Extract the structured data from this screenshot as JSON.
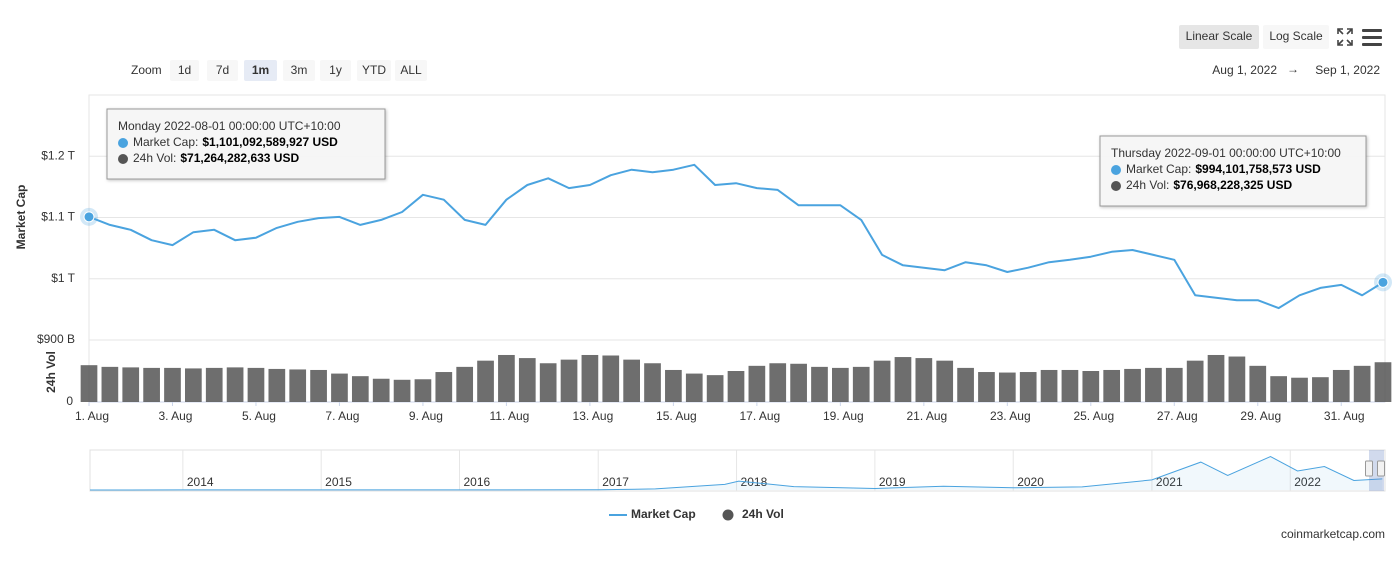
{
  "controls": {
    "zoom_label": "Zoom",
    "zoom_buttons": [
      "1d",
      "7d",
      "1m",
      "3m",
      "1y",
      "YTD",
      "ALL"
    ],
    "selected_zoom": 2,
    "scale_buttons": [
      "Linear Scale",
      "Log Scale"
    ],
    "selected_scale": 0
  },
  "date_range": {
    "from": "Aug 1, 2022",
    "arrow": "→",
    "to": "Sep 1, 2022"
  },
  "chart_data": {
    "type": "line",
    "ylabel": "Market Cap",
    "y2label": "24h Vol",
    "x": [
      "2022-08-01 00:00",
      "2022-08-01 12:00",
      "2022-08-02 00:00",
      "2022-08-02 12:00",
      "2022-08-03 00:00",
      "2022-08-03 12:00",
      "2022-08-04 00:00",
      "2022-08-04 12:00",
      "2022-08-05 00:00",
      "2022-08-05 12:00",
      "2022-08-06 00:00",
      "2022-08-06 12:00",
      "2022-08-07 00:00",
      "2022-08-07 12:00",
      "2022-08-08 00:00",
      "2022-08-08 12:00",
      "2022-08-09 00:00",
      "2022-08-09 12:00",
      "2022-08-10 00:00",
      "2022-08-10 12:00",
      "2022-08-11 00:00",
      "2022-08-11 12:00",
      "2022-08-12 00:00",
      "2022-08-12 12:00",
      "2022-08-13 00:00",
      "2022-08-13 12:00",
      "2022-08-14 00:00",
      "2022-08-14 12:00",
      "2022-08-15 00:00",
      "2022-08-15 12:00",
      "2022-08-16 00:00",
      "2022-08-16 12:00",
      "2022-08-17 00:00",
      "2022-08-17 12:00",
      "2022-08-18 00:00",
      "2022-08-18 12:00",
      "2022-08-19 00:00",
      "2022-08-19 12:00",
      "2022-08-20 00:00",
      "2022-08-20 12:00",
      "2022-08-21 00:00",
      "2022-08-21 12:00",
      "2022-08-22 00:00",
      "2022-08-22 12:00",
      "2022-08-23 00:00",
      "2022-08-23 12:00",
      "2022-08-24 00:00",
      "2022-08-24 12:00",
      "2022-08-25 00:00",
      "2022-08-25 12:00",
      "2022-08-26 00:00",
      "2022-08-26 12:00",
      "2022-08-27 00:00",
      "2022-08-27 12:00",
      "2022-08-28 00:00",
      "2022-08-28 12:00",
      "2022-08-29 00:00",
      "2022-08-29 12:00",
      "2022-08-30 00:00",
      "2022-08-30 12:00",
      "2022-08-31 00:00",
      "2022-08-31 12:00",
      "2022-09-01 00:00"
    ],
    "xlim": [
      "2022-08-01 00:00",
      "2022-09-01 00:00"
    ],
    "xticks": [
      {
        "value": "2022-08-01 00:00",
        "label": "1. Aug"
      },
      {
        "value": "2022-08-03 00:00",
        "label": "3. Aug"
      },
      {
        "value": "2022-08-05 00:00",
        "label": "5. Aug"
      },
      {
        "value": "2022-08-07 00:00",
        "label": "7. Aug"
      },
      {
        "value": "2022-08-09 00:00",
        "label": "9. Aug"
      },
      {
        "value": "2022-08-11 00:00",
        "label": "11. Aug"
      },
      {
        "value": "2022-08-13 00:00",
        "label": "13. Aug"
      },
      {
        "value": "2022-08-15 00:00",
        "label": "15. Aug"
      },
      {
        "value": "2022-08-17 00:00",
        "label": "17. Aug"
      },
      {
        "value": "2022-08-19 00:00",
        "label": "19. Aug"
      },
      {
        "value": "2022-08-21 00:00",
        "label": "21. Aug"
      },
      {
        "value": "2022-08-23 00:00",
        "label": "23. Aug"
      },
      {
        "value": "2022-08-25 00:00",
        "label": "25. Aug"
      },
      {
        "value": "2022-08-27 00:00",
        "label": "27. Aug"
      },
      {
        "value": "2022-08-29 00:00",
        "label": "29. Aug"
      },
      {
        "value": "2022-08-31 00:00",
        "label": "31. Aug"
      }
    ],
    "ylim": [
      900000000000,
      1300000000000
    ],
    "yticks": [
      {
        "value": 900000000000,
        "label": "$900 B"
      },
      {
        "value": 1000000000000,
        "label": "$1 T"
      },
      {
        "value": 1100000000000,
        "label": "$1.1 T"
      },
      {
        "value": 1200000000000,
        "label": "$1.2 T"
      }
    ],
    "y2lim": [
      0,
      120000000000
    ],
    "y2ticks": [
      0
    ],
    "grid": true,
    "series": [
      {
        "name": "Market Cap",
        "color": "#4aa3df",
        "values": [
          1101092589927,
          1088000000000,
          1080000000000,
          1063000000000,
          1055000000000,
          1076000000000,
          1080000000000,
          1063000000000,
          1067000000000,
          1083000000000,
          1093000000000,
          1099000000000,
          1101000000000,
          1088000000000,
          1096000000000,
          1109000000000,
          1137000000000,
          1129000000000,
          1096000000000,
          1088000000000,
          1129000000000,
          1153000000000,
          1164000000000,
          1148000000000,
          1153000000000,
          1169000000000,
          1178000000000,
          1174000000000,
          1178000000000,
          1186000000000,
          1153000000000,
          1156000000000,
          1148000000000,
          1145000000000,
          1120000000000,
          1120000000000,
          1120000000000,
          1096000000000,
          1039000000000,
          1022000000000,
          1018000000000,
          1014000000000,
          1027000000000,
          1022000000000,
          1011000000000,
          1018000000000,
          1027000000000,
          1031000000000,
          1036000000000,
          1044000000000,
          1047000000000,
          1039000000000,
          1031000000000,
          973000000000,
          969000000000,
          965000000000,
          965000000000,
          952000000000,
          973000000000,
          985000000000,
          990000000000,
          973000000000,
          994101758573
        ]
      },
      {
        "name": "24h Vol",
        "color": "#555555",
        "type": "bar",
        "axis": "y2",
        "values": [
          71264282633,
          68000000000,
          67000000000,
          66000000000,
          66000000000,
          65000000000,
          66000000000,
          67000000000,
          66000000000,
          64000000000,
          63000000000,
          62000000000,
          55000000000,
          50000000000,
          45000000000,
          43000000000,
          44000000000,
          58000000000,
          68000000000,
          80000000000,
          91000000000,
          85000000000,
          75000000000,
          82000000000,
          91000000000,
          90000000000,
          82000000000,
          75000000000,
          62000000000,
          55000000000,
          52000000000,
          60000000000,
          70000000000,
          75000000000,
          74000000000,
          68000000000,
          66000000000,
          68000000000,
          80000000000,
          87000000000,
          85000000000,
          80000000000,
          66000000000,
          58000000000,
          57000000000,
          58000000000,
          62000000000,
          62000000000,
          60000000000,
          62000000000,
          64000000000,
          66000000000,
          66000000000,
          80000000000,
          91000000000,
          88000000000,
          70000000000,
          50000000000,
          47000000000,
          48000000000,
          62000000000,
          70000000000,
          76968228325
        ]
      }
    ],
    "tooltips": [
      {
        "header": "Monday 2022-08-01 00:00:00 UTC+10:00",
        "rows": [
          {
            "label": "Market Cap:",
            "value": "$1,101,092,589,927 USD"
          },
          {
            "label": "24h Vol:",
            "value": "$71,264,282,633 USD"
          }
        ]
      },
      {
        "header": "Thursday 2022-09-01 00:00:00 UTC+10:00",
        "rows": [
          {
            "label": "Market Cap:",
            "value": "$994,101,758,573 USD"
          },
          {
            "label": "24h Vol:",
            "value": "$76,968,228,325 USD"
          }
        ]
      }
    ]
  },
  "navigator": {
    "x": [
      "2013-05-01",
      "2014-01-01",
      "2015-01-01",
      "2016-01-01",
      "2017-01-01",
      "2017-06-01",
      "2017-12-01",
      "2018-01-07",
      "2018-06-01",
      "2019-01-01",
      "2019-07-01",
      "2020-01-01",
      "2020-07-01",
      "2021-01-01",
      "2021-05-10",
      "2021-07-20",
      "2021-11-10",
      "2022-01-20",
      "2022-04-01",
      "2022-06-18",
      "2022-09-01"
    ],
    "values": [
      1500000000,
      10000000000,
      5000000000,
      7000000000,
      18000000000,
      100000000000,
      500000000000,
      800000000000,
      300000000000,
      130000000000,
      330000000000,
      200000000000,
      280000000000,
      900000000000,
      2500000000000,
      1300000000000,
      3000000000000,
      1700000000000,
      2100000000000,
      850000000000,
      994101758573
    ],
    "xlim": [
      "2013-05-01",
      "2022-09-08"
    ],
    "ylim": [
      0,
      3400000000000
    ],
    "xticks": [
      {
        "value": "2014-01-01",
        "label": "2014"
      },
      {
        "value": "2015-01-01",
        "label": "2015"
      },
      {
        "value": "2016-01-01",
        "label": "2016"
      },
      {
        "value": "2017-01-01",
        "label": "2017"
      },
      {
        "value": "2018-01-01",
        "label": "2018"
      },
      {
        "value": "2019-01-01",
        "label": "2019"
      },
      {
        "value": "2020-01-01",
        "label": "2020"
      },
      {
        "value": "2021-01-01",
        "label": "2021"
      },
      {
        "value": "2022-01-01",
        "label": "2022"
      }
    ]
  },
  "credit": "coinmarketcap.com"
}
